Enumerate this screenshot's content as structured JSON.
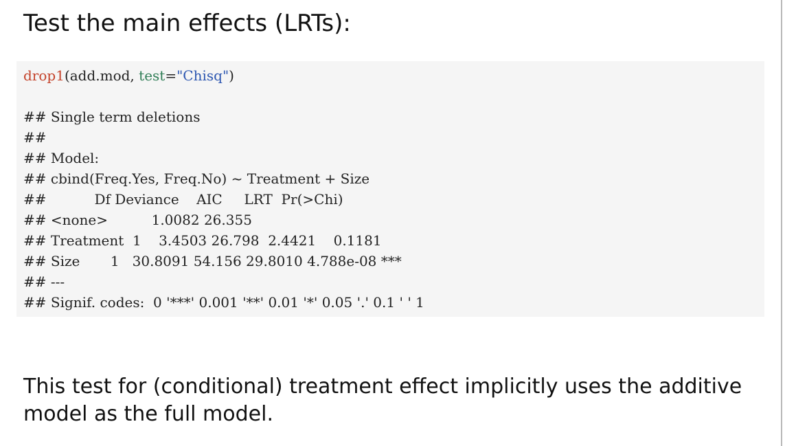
{
  "heading": "Test the main effects (LRTs):",
  "code": {
    "call": {
      "function": "drop1",
      "open": "(add.mod, ",
      "arg_name": "test",
      "equals": "=",
      "arg_value": "\"Chisq\"",
      "close": ")"
    },
    "output_lines": [
      "## Single term deletions",
      "##",
      "## Model:",
      "## cbind(Freq.Yes, Freq.No) ~ Treatment + Size",
      "##           Df Deviance    AIC     LRT  Pr(>Chi)",
      "## <none>          1.0082 26.355",
      "## Treatment  1    3.4503 26.798  2.4421    0.1181",
      "## Size       1   30.8091 54.156 29.8010 4.788e-08 ***",
      "## ---",
      "## Signif. codes:  0 '***' 0.001 '**' 0.01 '*' 0.05 '.' 0.1 ' ' 1"
    ]
  },
  "paragraph": "This test for (conditional) treatment effect implicitly uses the additive model as the full model."
}
